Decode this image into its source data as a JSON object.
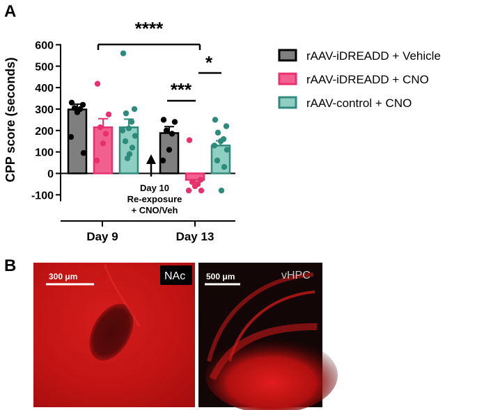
{
  "panel_a_letter": "A",
  "panel_b_letter": "B",
  "chart_data": {
    "type": "bar",
    "ylabel": "CPP score (seconds)",
    "ylim": [
      -130,
      600
    ],
    "yticks": [
      -100,
      0,
      100,
      200,
      300,
      400,
      500,
      600
    ],
    "categories": [
      "Day 9",
      "Day 13"
    ],
    "series": [
      {
        "name": "rAAV-iDREADD + Vehicle",
        "color": "#7f7f7f",
        "edge": "#000000",
        "dot": "#000000",
        "values": [
          298,
          188
        ],
        "sem": [
          25,
          30
        ],
        "points": [
          [
            330,
            320,
            305,
            300,
            285,
            170,
            95
          ],
          [
            250,
            240,
            200,
            185,
            110,
            60
          ]
        ]
      },
      {
        "name": "rAAV-iDREADD + CNO",
        "color": "#f2608f",
        "edge": "#e8316f",
        "dot": "#e8306d",
        "values": [
          215,
          -30
        ],
        "sem": [
          40,
          10
        ],
        "points": [
          [
            418,
            275,
            215,
            185,
            140,
            60
          ],
          [
            155,
            -30,
            -40,
            -50,
            -60,
            -80,
            -80
          ]
        ]
      },
      {
        "name": "rAAV-control + CNO",
        "color": "#8fcfc3",
        "edge": "#2f8c7c",
        "dot": "#2d8b7b",
        "values": [
          215,
          130
        ],
        "sem": [
          38,
          22
        ],
        "points": [
          [
            560,
            300,
            280,
            240,
            210,
            200,
            175,
            150,
            120,
            90,
            70
          ],
          [
            250,
            220,
            190,
            160,
            150,
            130,
            110,
            60,
            30,
            -80
          ]
        ]
      }
    ],
    "significance": [
      {
        "label": "****"
      },
      {
        "label": "***"
      },
      {
        "label": "*"
      }
    ],
    "annotation": [
      "Day 10",
      "Re-exposure",
      "+ CNO/Veh"
    ]
  },
  "images": [
    {
      "scale_label": "300 μm",
      "region_label": "NAc",
      "bg": "#c41414"
    },
    {
      "scale_label": "500 μm",
      "region_label": "vHPC",
      "bg": "#0f0606"
    }
  ]
}
